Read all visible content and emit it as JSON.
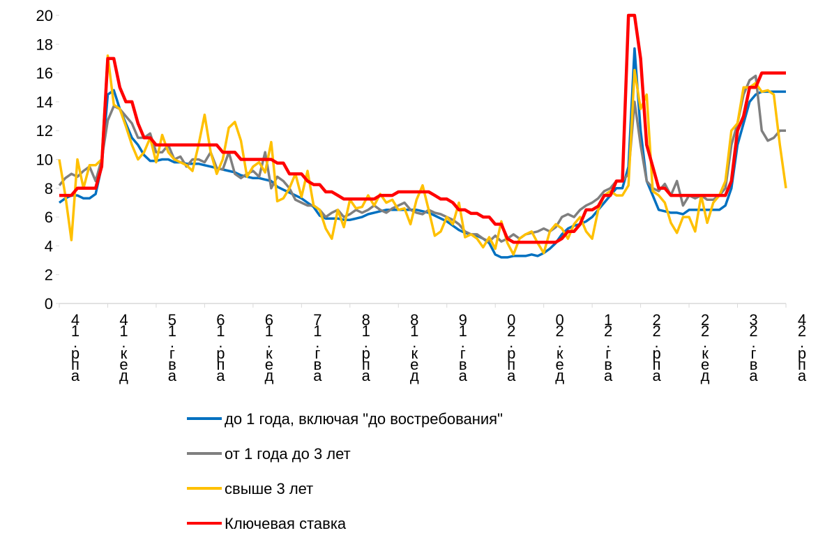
{
  "chart_data": {
    "type": "line",
    "categories": [
      "41.рпа",
      null,
      null,
      null,
      null,
      null,
      null,
      null,
      "41.кед",
      null,
      null,
      null,
      null,
      null,
      null,
      null,
      "51.гва",
      null,
      null,
      null,
      null,
      null,
      null,
      null,
      "61.рпа",
      null,
      null,
      null,
      null,
      null,
      null,
      null,
      "61.кед",
      null,
      null,
      null,
      null,
      null,
      null,
      null,
      "71.гва",
      null,
      null,
      null,
      null,
      null,
      null,
      null,
      "81.рпа",
      null,
      null,
      null,
      null,
      null,
      null,
      null,
      "81.кед",
      null,
      null,
      null,
      null,
      null,
      null,
      null,
      "91.гва",
      null,
      null,
      null,
      null,
      null,
      null,
      null,
      "02.рпа",
      null,
      null,
      null,
      null,
      null,
      null,
      null,
      "02.кед",
      null,
      null,
      null,
      null,
      null,
      null,
      null,
      "12.гва",
      null,
      null,
      null,
      null,
      null,
      null,
      null,
      "22.рпа",
      null,
      null,
      null,
      null,
      null,
      null,
      null,
      "22.кед",
      null,
      null,
      null,
      null,
      null,
      null,
      null,
      "32.гва",
      null,
      null,
      null,
      null,
      null,
      null,
      null,
      "42.рпа"
    ],
    "ylim": [
      0,
      20
    ],
    "yticks": [
      0,
      2,
      4,
      6,
      8,
      10,
      12,
      14,
      16,
      18,
      20
    ],
    "legend": "bottom",
    "series": [
      {
        "name": "до 1 года, включая \"до востребования\"",
        "color": "#0070c0",
        "values": [
          7,
          7.3,
          7.5,
          7.5,
          7.3,
          7.3,
          7.6,
          9.5,
          14.5,
          14.8,
          13.5,
          12.5,
          11.5,
          11,
          10.3,
          9.9,
          9.9,
          10,
          10,
          9.8,
          9.8,
          9.7,
          9.7,
          9.7,
          9.6,
          9.5,
          9.4,
          9.3,
          9.2,
          9.1,
          8.9,
          8.8,
          8.7,
          8.7,
          8.6,
          8.5,
          8.1,
          7.9,
          7.7,
          7.5,
          7.3,
          7,
          6.7,
          6.1,
          5.9,
          5.9,
          5.9,
          5.8,
          5.8,
          5.9,
          6,
          6.2,
          6.3,
          6.4,
          6.5,
          6.5,
          6.5,
          6.5,
          6.5,
          6.5,
          6.4,
          6.3,
          6.1,
          5.9,
          5.7,
          5.4,
          5.1,
          4.9,
          4.8,
          4.7,
          4.5,
          4.2,
          3.4,
          3.2,
          3.2,
          3.3,
          3.3,
          3.3,
          3.4,
          3.3,
          3.5,
          3.8,
          4.2,
          4.8,
          5.2,
          5.4,
          5.5,
          5.7,
          6,
          6.5,
          7,
          7.5,
          8,
          8,
          9.5,
          17.7,
          12,
          8.5,
          7.5,
          6.5,
          6.4,
          6.3,
          6.3,
          6.2,
          6.5,
          6.5,
          6.5,
          6.5,
          6.5,
          6.5,
          6.8,
          8,
          11,
          12.5,
          14,
          14.5,
          14.7,
          14.7,
          14.7,
          14.7,
          14.7
        ]
      },
      {
        "name": "от 1 года до 3 лет",
        "color": "#7f7f7f",
        "values": [
          8.2,
          8.7,
          9,
          8.8,
          9.2,
          9.5,
          8.5,
          10,
          12.7,
          13.7,
          13.5,
          13,
          12.5,
          11.5,
          11.5,
          11.8,
          10.5,
          10.5,
          11,
          10,
          10.2,
          9.5,
          10,
          10,
          9.8,
          10.5,
          9.4,
          9.3,
          10.5,
          9,
          8.7,
          9,
          9.2,
          8.8,
          10.5,
          8,
          8.8,
          8.5,
          8,
          7.2,
          7,
          6.8,
          6.8,
          6.5,
          6,
          6.3,
          6.5,
          6,
          6.2,
          6.5,
          6.3,
          6.5,
          6.8,
          6.5,
          6.3,
          6.6,
          6.8,
          7,
          6.5,
          6.3,
          6.2,
          6.5,
          6.3,
          6.2,
          6,
          5.8,
          5.5,
          5,
          4.8,
          4.8,
          4.5,
          4.3,
          4.7,
          4.3,
          4.5,
          4.8,
          4.5,
          4.8,
          4.9,
          5,
          5.2,
          5,
          5.3,
          6,
          6.2,
          6,
          6.5,
          6.8,
          7,
          7.3,
          7.8,
          8,
          8.5,
          8.5,
          9,
          14,
          11,
          8.5,
          8,
          7.8,
          8.3,
          7.5,
          8.5,
          6.8,
          7.5,
          7.3,
          7.5,
          7.2,
          7.2,
          7.5,
          8,
          11,
          12.5,
          14.5,
          15.5,
          15.8,
          12,
          11.3,
          11.5,
          12,
          12
        ]
      },
      {
        "name": "свыше 3 лет",
        "color": "#ffc000",
        "values": [
          10,
          7.5,
          4.4,
          10,
          8,
          9.6,
          9.6,
          10,
          17.2,
          13.8,
          13.5,
          12.3,
          11,
          10,
          10.5,
          11.5,
          9.8,
          11.7,
          10.5,
          10,
          9.8,
          9.6,
          9.2,
          11,
          13.1,
          10.5,
          9,
          10,
          12.2,
          12.6,
          11.3,
          8.8,
          9.5,
          9.8,
          9.1,
          11.2,
          7.1,
          7.3,
          8,
          9,
          7.4,
          9.2,
          6.8,
          6.5,
          5.2,
          4.5,
          6.5,
          5.3,
          7.2,
          6.6,
          6.7,
          7.5,
          6.8,
          7.6,
          7,
          7.2,
          6.5,
          6.6,
          5.5,
          7.2,
          8.2,
          6.5,
          4.7,
          5,
          6,
          5.5,
          7,
          4.6,
          4.8,
          4.5,
          3.9,
          4.6,
          3.8,
          5.7,
          4.2,
          3.4,
          4.5,
          4.8,
          5,
          4.2,
          3.5,
          5,
          5.5,
          5.2,
          4.5,
          5.5,
          6,
          5,
          4.5,
          6.5,
          7.5,
          7.8,
          7.5,
          7.5,
          8.2,
          16.2,
          13.5,
          14.5,
          7.8,
          7.5,
          7,
          5.6,
          4.9,
          6,
          6,
          5,
          7.5,
          5.6,
          7,
          7.5,
          8.5,
          12,
          12.5,
          15,
          15,
          15.3,
          14.7,
          14.8,
          14.5,
          11,
          8
        ]
      },
      {
        "name": "Ключевая ставка",
        "color": "#ff0000",
        "values": [
          7.5,
          7.5,
          7.5,
          8,
          8,
          8,
          8,
          9.5,
          17,
          17,
          15,
          14,
          14,
          12.5,
          11.5,
          11.5,
          11,
          11,
          11,
          11,
          11,
          11,
          11,
          11,
          11,
          11,
          11,
          10.5,
          10.5,
          10.5,
          10,
          10,
          10,
          10,
          10,
          10,
          9.75,
          9.75,
          9,
          9,
          9,
          8.5,
          8.25,
          8.25,
          7.75,
          7.75,
          7.5,
          7.25,
          7.25,
          7.25,
          7.25,
          7.25,
          7.25,
          7.5,
          7.5,
          7.5,
          7.75,
          7.75,
          7.75,
          7.75,
          7.75,
          7.75,
          7.5,
          7.25,
          7.25,
          7,
          6.5,
          6.5,
          6.25,
          6.25,
          6,
          6,
          5.5,
          5.5,
          4.5,
          4.25,
          4.25,
          4.25,
          4.25,
          4.25,
          4.25,
          4.25,
          4.25,
          4.5,
          5,
          5,
          5.5,
          6.5,
          6.5,
          6.75,
          7.5,
          7.5,
          8.5,
          8.5,
          20,
          20,
          17,
          11,
          9.5,
          8,
          8,
          7.5,
          7.5,
          7.5,
          7.5,
          7.5,
          7.5,
          7.5,
          7.5,
          7.5,
          7.5,
          8.5,
          12,
          13,
          15,
          15,
          16,
          16,
          16,
          16,
          16
        ]
      }
    ]
  }
}
